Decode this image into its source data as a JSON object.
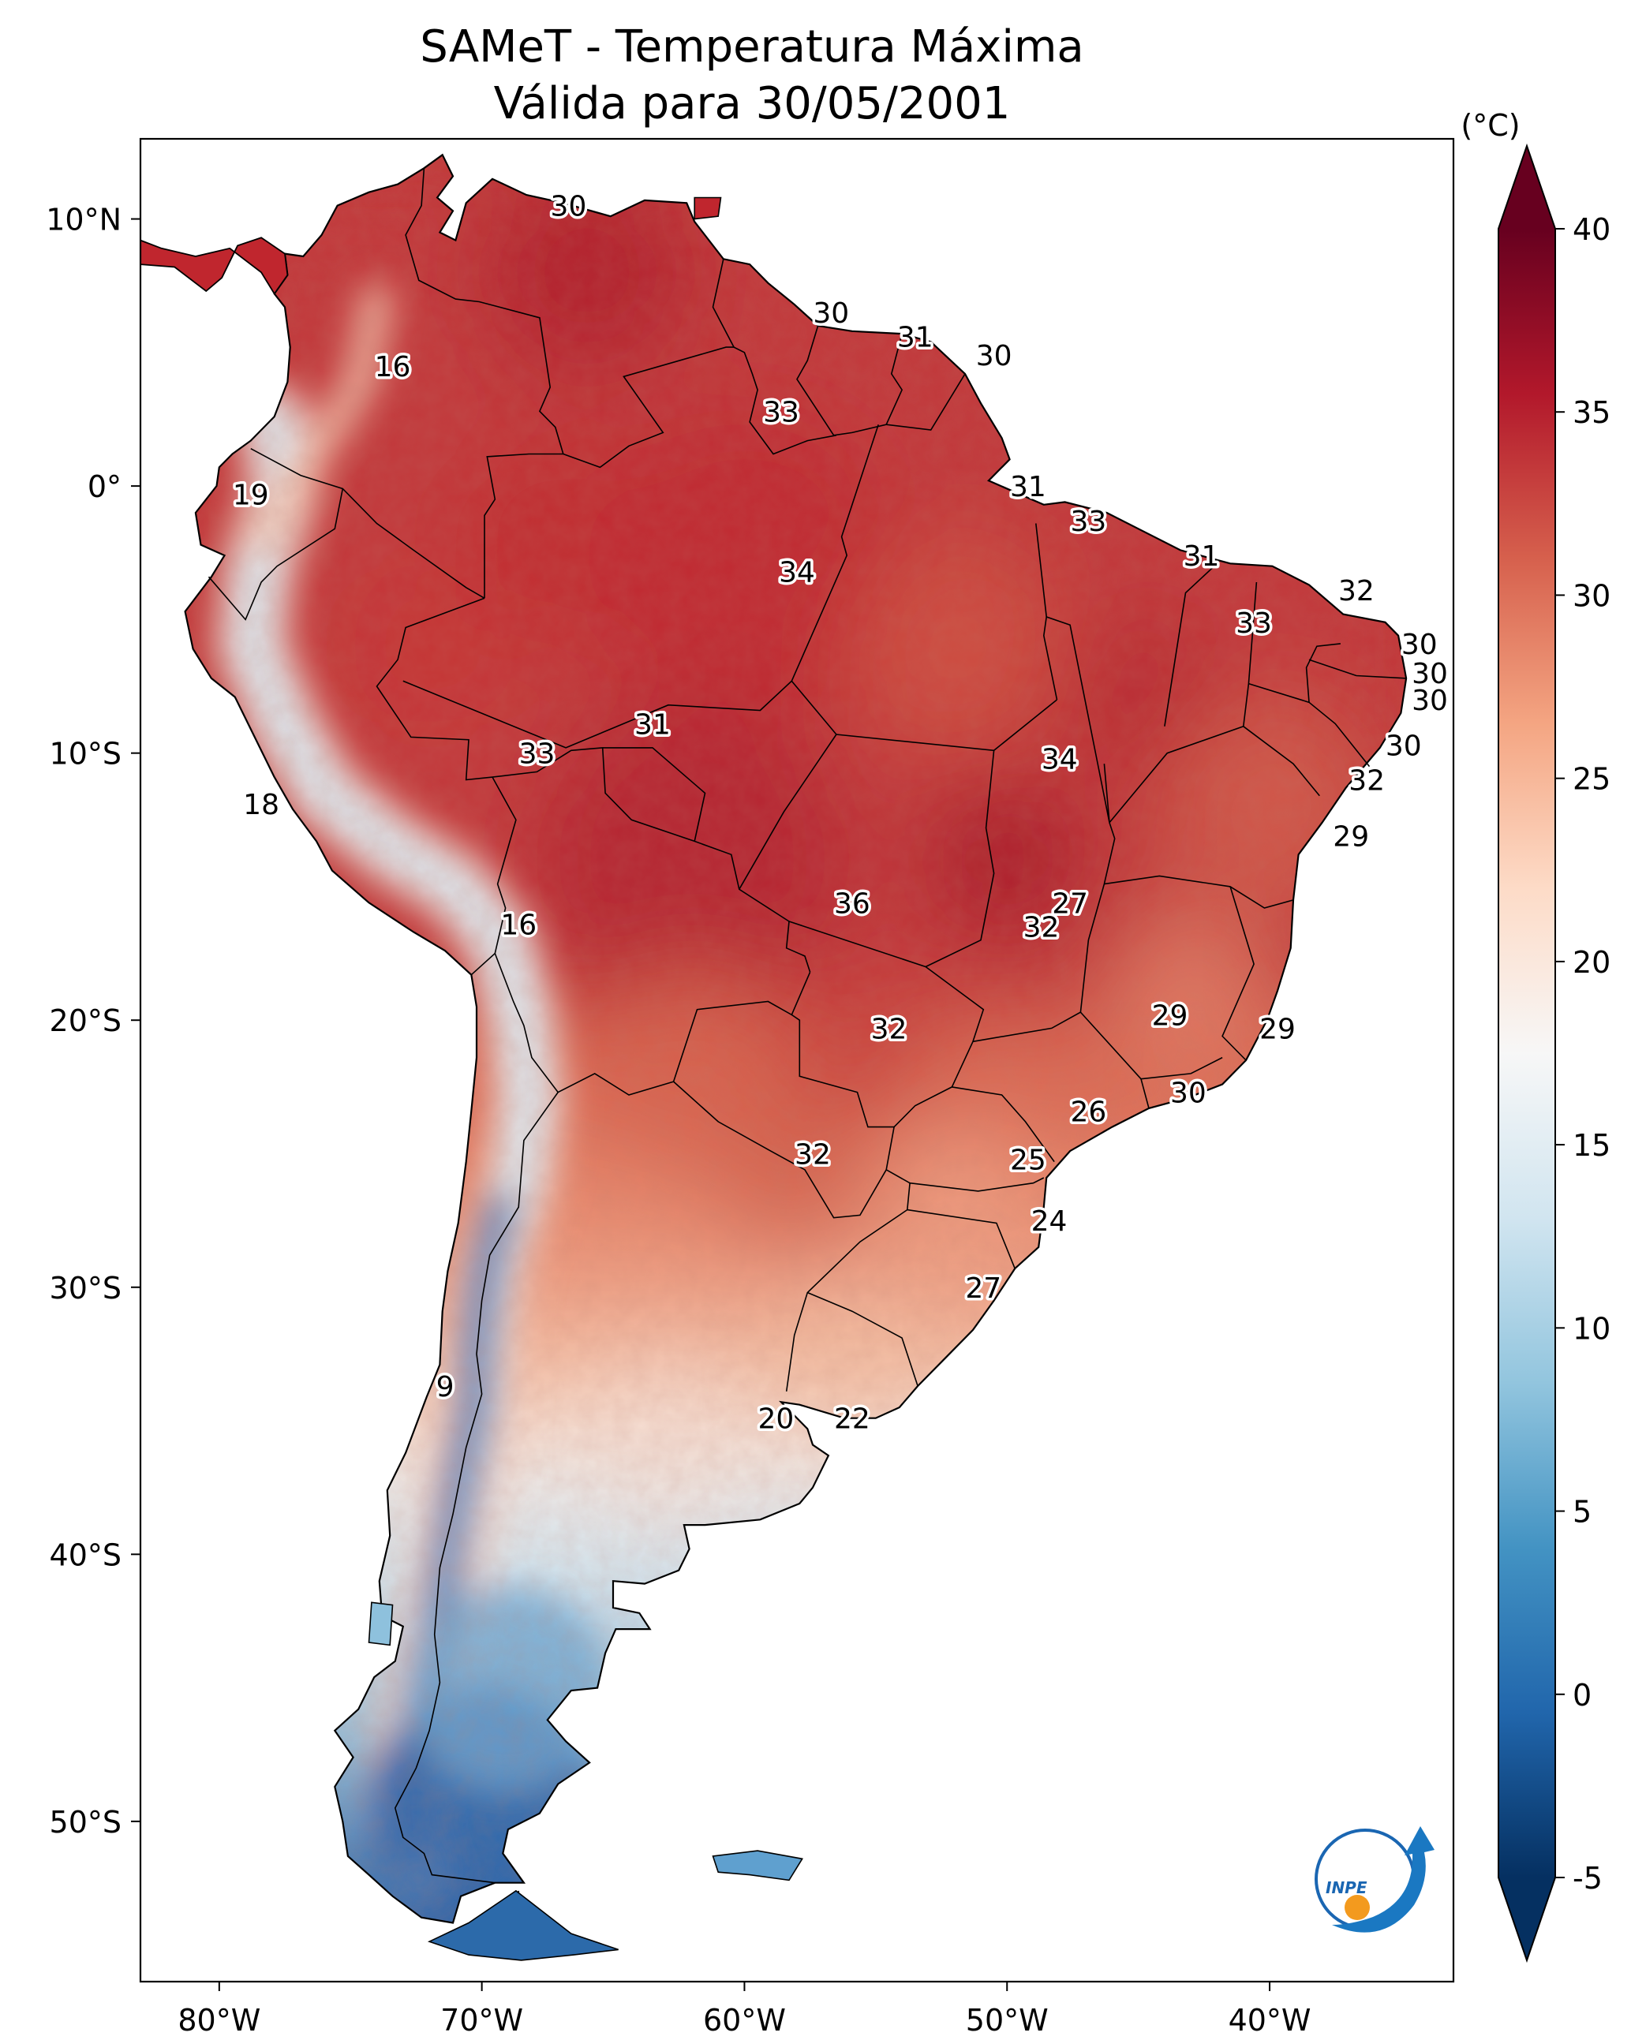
{
  "title": {
    "line1": "SAMeT - Temperatura Máxima",
    "line2": "Válida para 30/05/2001"
  },
  "map": {
    "lon_range": [
      -83,
      -33
    ],
    "lat_range": [
      -56,
      13
    ],
    "lon_ticks": [
      "80°W",
      "70°W",
      "60°W",
      "50°W",
      "40°W"
    ],
    "lat_ticks": [
      "10°N",
      "0°",
      "10°S",
      "20°S",
      "30°S",
      "40°S",
      "50°S"
    ],
    "logo_text": "INPE"
  },
  "colorbar": {
    "unit_label": "(°C)",
    "range": [
      -5,
      40
    ],
    "ticks": [
      "40",
      "35",
      "30",
      "25",
      "20",
      "15",
      "10",
      "5",
      "0",
      "-5"
    ],
    "colors": [
      "#053061",
      "#2166ac",
      "#4393c3",
      "#92c5de",
      "#d1e5f0",
      "#f7f7f7",
      "#fddbc7",
      "#f4a582",
      "#d6604d",
      "#b2182b",
      "#67001f"
    ]
  },
  "chart_data": {
    "type": "heatmap",
    "variable": "Temperatura Máxima",
    "units": "°C",
    "date": "30/05/2001",
    "labels": [
      {
        "lon": -66.7,
        "lat": 10.5,
        "value": "30"
      },
      {
        "lon": -56.7,
        "lat": 6.5,
        "value": "30"
      },
      {
        "lon": -53.5,
        "lat": 5.6,
        "value": "31"
      },
      {
        "lon": -50.5,
        "lat": 4.9,
        "value": "30"
      },
      {
        "lon": -73.4,
        "lat": 4.5,
        "value": "16"
      },
      {
        "lon": -58.6,
        "lat": 2.8,
        "value": "33"
      },
      {
        "lon": -49.2,
        "lat": 0.0,
        "value": "31"
      },
      {
        "lon": -78.8,
        "lat": -0.3,
        "value": "19"
      },
      {
        "lon": -46.9,
        "lat": -1.3,
        "value": "33"
      },
      {
        "lon": -42.6,
        "lat": -2.6,
        "value": "31"
      },
      {
        "lon": -58.0,
        "lat": -3.2,
        "value": "34"
      },
      {
        "lon": -36.7,
        "lat": -3.9,
        "value": "32"
      },
      {
        "lon": -40.6,
        "lat": -5.1,
        "value": "33"
      },
      {
        "lon": -34.3,
        "lat": -5.9,
        "value": "30"
      },
      {
        "lon": -33.9,
        "lat": -7.0,
        "value": "30"
      },
      {
        "lon": -33.9,
        "lat": -8.0,
        "value": "30"
      },
      {
        "lon": -63.5,
        "lat": -8.9,
        "value": "31"
      },
      {
        "lon": -34.9,
        "lat": -9.7,
        "value": "30"
      },
      {
        "lon": -67.9,
        "lat": -10.0,
        "value": "33"
      },
      {
        "lon": -48.0,
        "lat": -10.2,
        "value": "34"
      },
      {
        "lon": -36.3,
        "lat": -11.0,
        "value": "32"
      },
      {
        "lon": -78.4,
        "lat": -11.9,
        "value": "18"
      },
      {
        "lon": -36.9,
        "lat": -13.1,
        "value": "29"
      },
      {
        "lon": -47.6,
        "lat": -15.6,
        "value": "27"
      },
      {
        "lon": -55.9,
        "lat": -15.6,
        "value": "36"
      },
      {
        "lon": -68.6,
        "lat": -16.4,
        "value": "16"
      },
      {
        "lon": -48.7,
        "lat": -16.5,
        "value": "32"
      },
      {
        "lon": -43.8,
        "lat": -19.8,
        "value": "29"
      },
      {
        "lon": -54.5,
        "lat": -20.3,
        "value": "32"
      },
      {
        "lon": -39.7,
        "lat": -20.3,
        "value": "29"
      },
      {
        "lon": -43.1,
        "lat": -22.7,
        "value": "30"
      },
      {
        "lon": -46.9,
        "lat": -23.4,
        "value": "26"
      },
      {
        "lon": -57.4,
        "lat": -25.0,
        "value": "32"
      },
      {
        "lon": -49.2,
        "lat": -25.2,
        "value": "25"
      },
      {
        "lon": -48.4,
        "lat": -27.5,
        "value": "24"
      },
      {
        "lon": -50.9,
        "lat": -30.0,
        "value": "27"
      },
      {
        "lon": -71.4,
        "lat": -33.7,
        "value": "9"
      },
      {
        "lon": -58.8,
        "lat": -34.9,
        "value": "20"
      },
      {
        "lon": -55.9,
        "lat": -34.9,
        "value": "22"
      }
    ]
  }
}
